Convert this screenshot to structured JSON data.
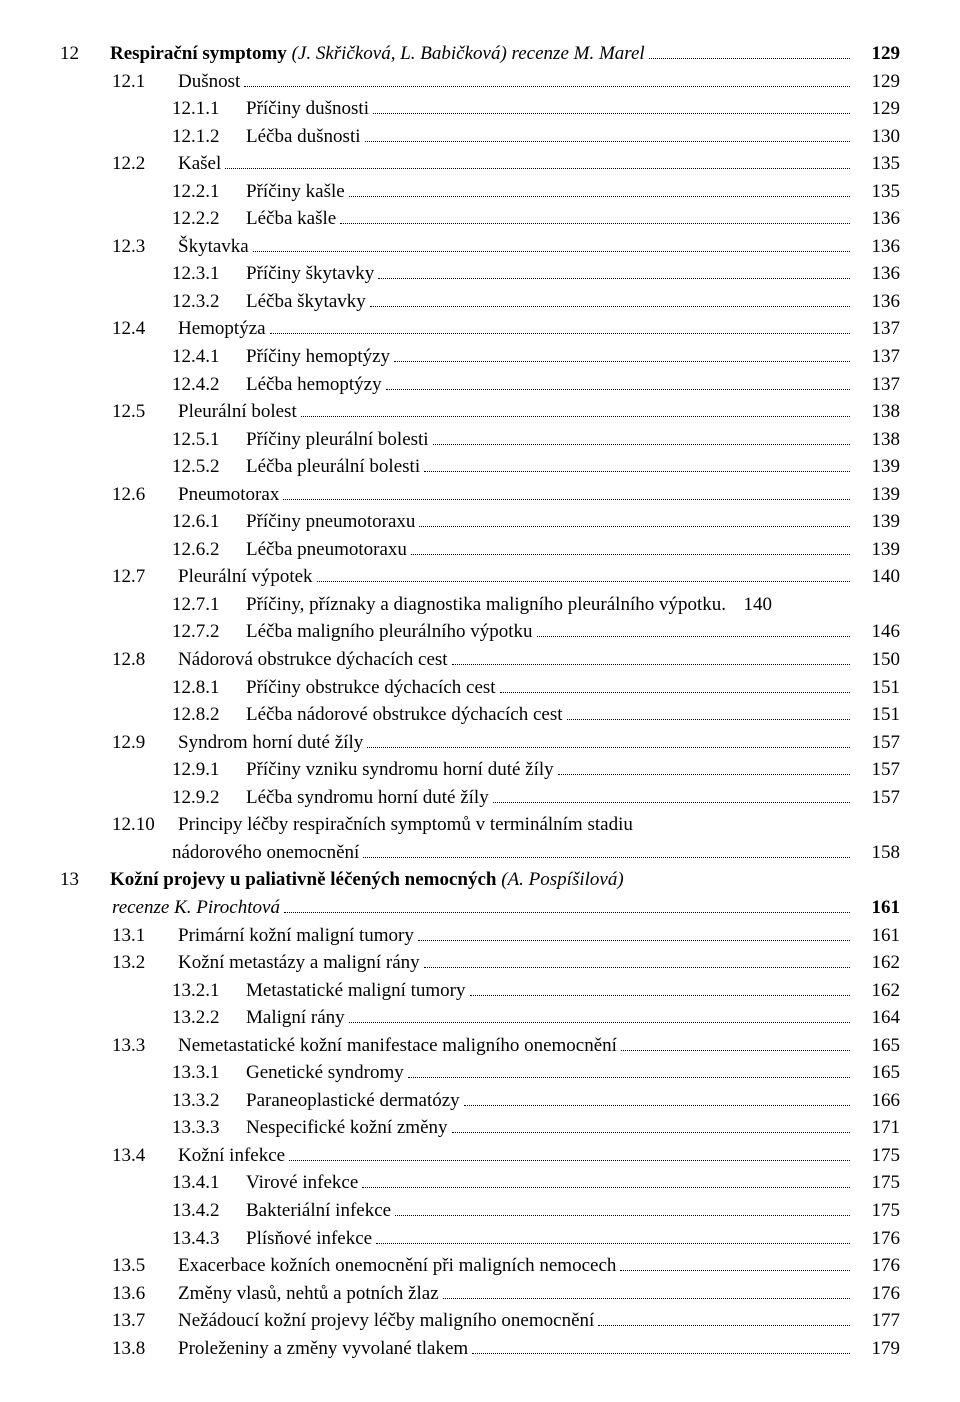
{
  "entries": [
    {
      "indent": 0,
      "num": "12",
      "label_parts": [
        {
          "t": "Respirační symptomy ",
          "b": true
        },
        {
          "t": "(J. Skřičková, L. Babičková) recenze M. Marel",
          "i": true
        }
      ],
      "page": "129",
      "bold_page": true,
      "leader": true
    },
    {
      "indent": 1,
      "num": "12.1",
      "label_parts": [
        {
          "t": "Dušnost"
        }
      ],
      "page": "129",
      "leader": true
    },
    {
      "indent": 2,
      "num": "12.1.1",
      "label_parts": [
        {
          "t": "Příčiny dušnosti"
        }
      ],
      "page": "129",
      "leader": true
    },
    {
      "indent": 2,
      "num": "12.1.2",
      "label_parts": [
        {
          "t": "Léčba dušnosti"
        }
      ],
      "page": "130",
      "leader": true
    },
    {
      "indent": 1,
      "num": "12.2",
      "label_parts": [
        {
          "t": "Kašel"
        }
      ],
      "page": "135",
      "leader": true
    },
    {
      "indent": 2,
      "num": "12.2.1",
      "label_parts": [
        {
          "t": "Příčiny kašle"
        }
      ],
      "page": "135",
      "leader": true
    },
    {
      "indent": 2,
      "num": "12.2.2",
      "label_parts": [
        {
          "t": "Léčba kašle"
        }
      ],
      "page": "136",
      "leader": true
    },
    {
      "indent": 1,
      "num": "12.3",
      "label_parts": [
        {
          "t": "Škytavka"
        }
      ],
      "page": "136",
      "leader": true
    },
    {
      "indent": 2,
      "num": "12.3.1",
      "label_parts": [
        {
          "t": "Příčiny škytavky"
        }
      ],
      "page": "136",
      "leader": true
    },
    {
      "indent": 2,
      "num": "12.3.2",
      "label_parts": [
        {
          "t": "Léčba škytavky"
        }
      ],
      "page": "136",
      "leader": true
    },
    {
      "indent": 1,
      "num": "12.4",
      "label_parts": [
        {
          "t": "Hemoptýza"
        }
      ],
      "page": "137",
      "leader": true
    },
    {
      "indent": 2,
      "num": "12.4.1",
      "label_parts": [
        {
          "t": "Příčiny hemoptýzy"
        }
      ],
      "page": "137",
      "leader": true
    },
    {
      "indent": 2,
      "num": "12.4.2",
      "label_parts": [
        {
          "t": "Léčba hemoptýzy"
        }
      ],
      "page": "137",
      "leader": true
    },
    {
      "indent": 1,
      "num": "12.5",
      "label_parts": [
        {
          "t": "Pleurální bolest"
        }
      ],
      "page": "138",
      "leader": true
    },
    {
      "indent": 2,
      "num": "12.5.1",
      "label_parts": [
        {
          "t": "Příčiny pleurální bolesti"
        }
      ],
      "page": "138",
      "leader": true
    },
    {
      "indent": 2,
      "num": "12.5.2",
      "label_parts": [
        {
          "t": "Léčba pleurální bolesti"
        }
      ],
      "page": "139",
      "leader": true
    },
    {
      "indent": 1,
      "num": "12.6",
      "label_parts": [
        {
          "t": "Pneumotorax"
        }
      ],
      "page": "139",
      "leader": true
    },
    {
      "indent": 2,
      "num": "12.6.1",
      "label_parts": [
        {
          "t": "Příčiny pneumotoraxu"
        }
      ],
      "page": "139",
      "leader": true
    },
    {
      "indent": 2,
      "num": "12.6.2",
      "label_parts": [
        {
          "t": "Léčba pneumotoraxu"
        }
      ],
      "page": "139",
      "leader": true
    },
    {
      "indent": 1,
      "num": "12.7",
      "label_parts": [
        {
          "t": "Pleurální výpotek"
        }
      ],
      "page": "140",
      "leader": true
    },
    {
      "indent": 2,
      "num": "12.7.1",
      "label_parts": [
        {
          "t": "Příčiny, příznaky a diagnostika maligního pleurálního výpotku"
        }
      ],
      "page": "140",
      "leader": false,
      "sep": " . "
    },
    {
      "indent": 2,
      "num": "12.7.2",
      "label_parts": [
        {
          "t": "Léčba maligního pleurálního výpotku"
        }
      ],
      "page": "146",
      "leader": true
    },
    {
      "indent": 1,
      "num": "12.8",
      "label_parts": [
        {
          "t": "Nádorová obstrukce dýchacích cest"
        }
      ],
      "page": "150",
      "leader": true
    },
    {
      "indent": 2,
      "num": "12.8.1",
      "label_parts": [
        {
          "t": "Příčiny obstrukce dýchacích cest"
        }
      ],
      "page": "151",
      "leader": true
    },
    {
      "indent": 2,
      "num": "12.8.2",
      "label_parts": [
        {
          "t": "Léčba nádorové obstrukce dýchacích cest"
        }
      ],
      "page": "151",
      "leader": true
    },
    {
      "indent": 1,
      "num": "12.9",
      "label_parts": [
        {
          "t": "Syndrom horní duté žíly"
        }
      ],
      "page": "157",
      "leader": true
    },
    {
      "indent": 2,
      "num": "12.9.1",
      "label_parts": [
        {
          "t": "Příčiny vzniku syndromu horní duté žíly"
        }
      ],
      "page": "157",
      "leader": true
    },
    {
      "indent": 2,
      "num": "12.9.2",
      "label_parts": [
        {
          "t": "Léčba syndromu horní duté žíly"
        }
      ],
      "page": "157",
      "leader": true
    },
    {
      "indent": 1,
      "num": "12.10",
      "wrap": true,
      "first_line": "Principy léčby respiračních symptomů v terminálním stadiu",
      "second_line": "nádorového onemocnění",
      "page": "158",
      "leader": true
    },
    {
      "indent": 0,
      "num": "13",
      "wrap": true,
      "bold_page": true,
      "first_parts": [
        {
          "t": "Kožní projevy u paliativně léčených nemocných ",
          "b": true
        },
        {
          "t": "(A. Pospíšilová)",
          "i": true
        }
      ],
      "second_parts": [
        {
          "t": "recenze K. Pirochtová",
          "i": true
        }
      ],
      "page": "161",
      "leader": true
    },
    {
      "indent": 1,
      "num": "13.1",
      "label_parts": [
        {
          "t": "Primární kožní maligní tumory"
        }
      ],
      "page": "161",
      "leader": true
    },
    {
      "indent": 1,
      "num": "13.2",
      "label_parts": [
        {
          "t": "Kožní metastázy a maligní rány"
        }
      ],
      "page": "162",
      "leader": true
    },
    {
      "indent": 2,
      "num": "13.2.1",
      "label_parts": [
        {
          "t": "Metastatické maligní tumory"
        }
      ],
      "page": "162",
      "leader": true
    },
    {
      "indent": 2,
      "num": "13.2.2",
      "label_parts": [
        {
          "t": "Maligní rány"
        }
      ],
      "page": "164",
      "leader": true
    },
    {
      "indent": 1,
      "num": "13.3",
      "label_parts": [
        {
          "t": "Nemetastatické kožní manifestace maligního onemocnění"
        }
      ],
      "page": "165",
      "leader": true
    },
    {
      "indent": 2,
      "num": "13.3.1",
      "label_parts": [
        {
          "t": "Genetické syndromy"
        }
      ],
      "page": "165",
      "leader": true
    },
    {
      "indent": 2,
      "num": "13.3.2",
      "label_parts": [
        {
          "t": "Paraneoplastické dermatózy"
        }
      ],
      "page": "166",
      "leader": true
    },
    {
      "indent": 2,
      "num": "13.3.3",
      "label_parts": [
        {
          "t": "Nespecifické kožní změny"
        }
      ],
      "page": "171",
      "leader": true
    },
    {
      "indent": 1,
      "num": "13.4",
      "label_parts": [
        {
          "t": "Kožní infekce"
        }
      ],
      "page": "175",
      "leader": true
    },
    {
      "indent": 2,
      "num": "13.4.1",
      "label_parts": [
        {
          "t": "Virové infekce"
        }
      ],
      "page": "175",
      "leader": true
    },
    {
      "indent": 2,
      "num": "13.4.2",
      "label_parts": [
        {
          "t": "Bakteriální infekce"
        }
      ],
      "page": "175",
      "leader": true
    },
    {
      "indent": 2,
      "num": "13.4.3",
      "label_parts": [
        {
          "t": "Plísňové infekce"
        }
      ],
      "page": "176",
      "leader": true
    },
    {
      "indent": 1,
      "num": "13.5",
      "label_parts": [
        {
          "t": "Exacerbace kožních onemocnění při maligních nemocech"
        }
      ],
      "page": "176",
      "leader": true
    },
    {
      "indent": 1,
      "num": "13.6",
      "label_parts": [
        {
          "t": "Změny vlasů, nehtů a potních žlaz"
        }
      ],
      "page": "176",
      "leader": true
    },
    {
      "indent": 1,
      "num": "13.7",
      "label_parts": [
        {
          "t": "Nežádoucí kožní projevy léčby maligního onemocnění"
        }
      ],
      "page": "177",
      "leader": true
    },
    {
      "indent": 1,
      "num": "13.8",
      "label_parts": [
        {
          "t": "Proleženiny a změny vyvolané tlakem"
        }
      ],
      "page": "179",
      "leader": true
    }
  ],
  "num_widths": {
    "0": "42px",
    "1": "58px",
    "2": "66px"
  }
}
